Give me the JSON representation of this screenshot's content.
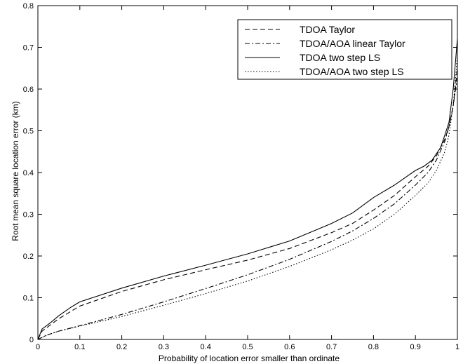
{
  "chart_data": {
    "type": "line",
    "title": "",
    "xlabel": "Probability of location error smaller than ordinate",
    "ylabel": "Root mean square location error (km)",
    "xlim": [
      0,
      1
    ],
    "ylim": [
      0,
      0.8
    ],
    "xticks": [
      "0",
      "0.1",
      "0.2",
      "0.3",
      "0.4",
      "0.5",
      "0.6",
      "0.7",
      "0.8",
      "0.9",
      "1"
    ],
    "yticks": [
      "0",
      "0.1",
      "0.2",
      "0.3",
      "0.4",
      "0.5",
      "0.6",
      "0.7",
      "0.8"
    ],
    "grid": false,
    "legend_position": "top-right",
    "series": [
      {
        "name": "TDOA Taylor",
        "style": "dashed",
        "color": "#000000",
        "x": [
          0,
          0.01,
          0.03,
          0.05,
          0.08,
          0.1,
          0.2,
          0.3,
          0.4,
          0.5,
          0.6,
          0.7,
          0.75,
          0.8,
          0.85,
          0.9,
          0.93,
          0.95,
          0.97,
          0.98,
          0.99,
          1.0
        ],
        "y": [
          0,
          0.02,
          0.035,
          0.05,
          0.068,
          0.08,
          0.115,
          0.143,
          0.167,
          0.19,
          0.218,
          0.256,
          0.278,
          0.31,
          0.345,
          0.39,
          0.415,
          0.44,
          0.48,
          0.51,
          0.56,
          0.65
        ]
      },
      {
        "name": "TDOA/AOA linear Taylor",
        "style": "dashdot",
        "color": "#000000",
        "x": [
          0,
          0.02,
          0.05,
          0.1,
          0.2,
          0.3,
          0.4,
          0.5,
          0.6,
          0.7,
          0.75,
          0.8,
          0.85,
          0.9,
          0.93,
          0.95,
          0.97,
          0.98,
          0.99,
          1.0
        ],
        "y": [
          0,
          0.01,
          0.02,
          0.033,
          0.06,
          0.09,
          0.122,
          0.155,
          0.192,
          0.235,
          0.26,
          0.29,
          0.325,
          0.37,
          0.4,
          0.43,
          0.475,
          0.51,
          0.56,
          0.63
        ]
      },
      {
        "name": "TDOA two step LS",
        "style": "solid",
        "color": "#000000",
        "x": [
          0,
          0.01,
          0.03,
          0.05,
          0.08,
          0.1,
          0.2,
          0.3,
          0.4,
          0.5,
          0.6,
          0.7,
          0.75,
          0.8,
          0.85,
          0.9,
          0.92,
          0.94,
          0.96,
          0.97,
          0.98,
          0.99,
          1.0
        ],
        "y": [
          0,
          0.025,
          0.04,
          0.057,
          0.078,
          0.09,
          0.123,
          0.152,
          0.178,
          0.205,
          0.236,
          0.278,
          0.303,
          0.34,
          0.37,
          0.405,
          0.415,
          0.43,
          0.46,
          0.49,
          0.52,
          0.6,
          0.72
        ]
      },
      {
        "name": "TDOA/AOA two step LS",
        "style": "dotted",
        "color": "#000000",
        "x": [
          0,
          0.02,
          0.05,
          0.1,
          0.2,
          0.3,
          0.4,
          0.5,
          0.6,
          0.7,
          0.75,
          0.8,
          0.85,
          0.9,
          0.93,
          0.95,
          0.97,
          0.98,
          0.99,
          1.0
        ],
        "y": [
          0,
          0.01,
          0.02,
          0.032,
          0.055,
          0.082,
          0.11,
          0.14,
          0.175,
          0.215,
          0.238,
          0.265,
          0.3,
          0.345,
          0.375,
          0.405,
          0.45,
          0.49,
          0.56,
          0.68
        ]
      }
    ]
  }
}
